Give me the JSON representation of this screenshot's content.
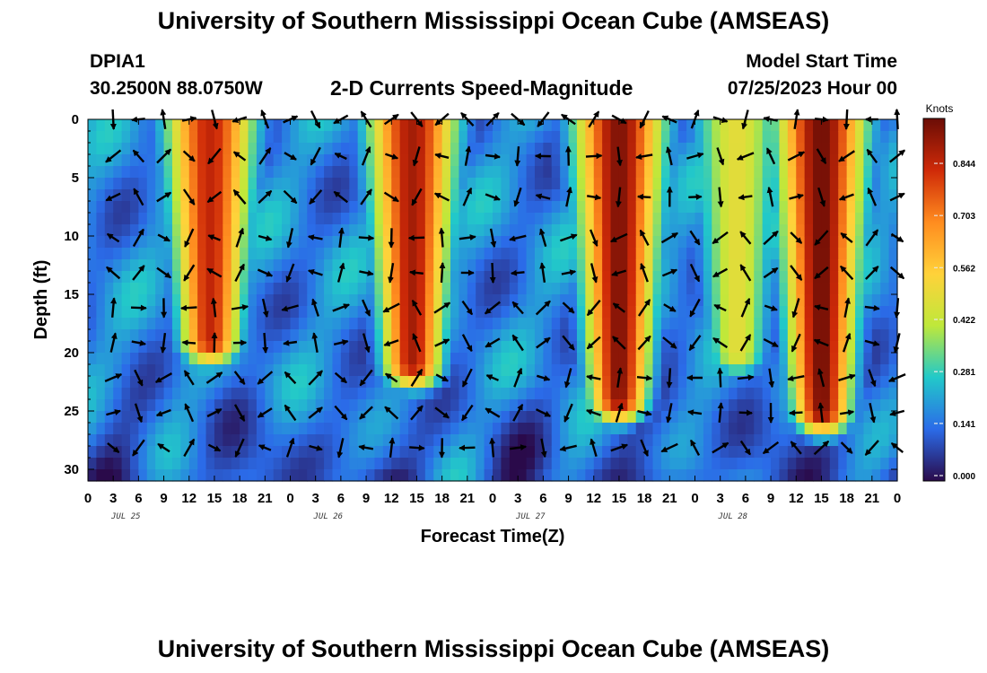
{
  "title": "University of Southern Mississippi Ocean Cube (AMSEAS)",
  "station": "DPIA1",
  "coordinates": "30.2500N  88.0750W",
  "subtitle": "2-D Currents Speed-Magnitude",
  "model_start_label": "Model Start Time",
  "model_start_value": "07/25/2023 Hour 00",
  "colors": {
    "colormap": [
      "#2a0a4a",
      "#2b6be8",
      "#22c9c9",
      "#bfe83a",
      "#ffd23a",
      "#ff8c1f",
      "#cf2a08",
      "#6b0d06"
    ]
  },
  "chart_data": {
    "type": "heatmap",
    "xlabel": "Forecast Time(Z)",
    "ylabel": "Depth (ft)",
    "x_ticks": [
      "0",
      "3",
      "6",
      "9",
      "12",
      "15",
      "18",
      "21",
      "0",
      "3",
      "6",
      "9",
      "12",
      "15",
      "18",
      "21",
      "0",
      "3",
      "6",
      "9",
      "12",
      "15",
      "18",
      "21",
      "0",
      "3",
      "6",
      "9",
      "12",
      "15",
      "18",
      "21",
      "0"
    ],
    "day_labels": [
      "JUL 25",
      "JUL 26",
      "JUL 27",
      "JUL 28"
    ],
    "y_ticks": [
      "0",
      "5",
      "10",
      "15",
      "20",
      "25",
      "30"
    ],
    "ylim": [
      0,
      31
    ],
    "xlim_hours": [
      0,
      96
    ],
    "depth_levels_ft": [
      0,
      5,
      10,
      15,
      20,
      25,
      30
    ],
    "colorbar": {
      "title": "Knots",
      "ticks": [
        "0.844",
        "0.703",
        "0.562",
        "0.422",
        "0.281",
        "0.141",
        "0.000"
      ],
      "range": [
        0,
        0.98
      ]
    },
    "speed_events": [
      {
        "center_hour": 14.5,
        "peak_knots": 0.86,
        "bottom_depth_ft": 19
      },
      {
        "center_hour": 38.5,
        "peak_knots": 0.9,
        "bottom_depth_ft": 21
      },
      {
        "center_hour": 63.0,
        "peak_knots": 0.95,
        "bottom_depth_ft": 24
      },
      {
        "center_hour": 87.0,
        "peak_knots": 0.97,
        "bottom_depth_ft": 25
      },
      {
        "center_hour": 77.0,
        "peak_knots": 0.5,
        "bottom_depth_ft": 20
      }
    ]
  }
}
